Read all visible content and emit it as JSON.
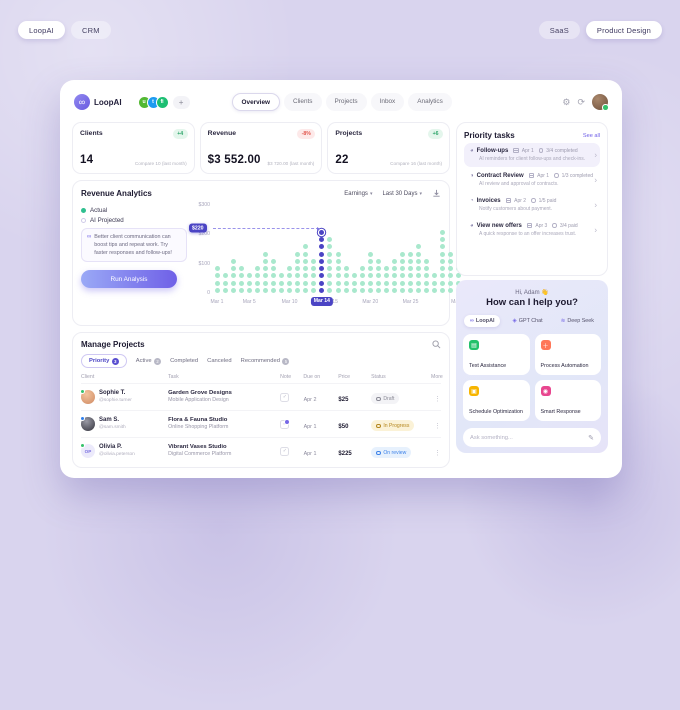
{
  "page_tags": {
    "left": [
      {
        "label": "LoopAI"
      },
      {
        "label": "CRM"
      }
    ],
    "right": [
      {
        "label": "SaaS"
      },
      {
        "label": "Product Design"
      }
    ]
  },
  "header": {
    "brand": "LoopAI",
    "logo_glyph": "∞",
    "integrations": [
      {
        "name": "upwork",
        "glyph": "u",
        "color": "#53b833"
      },
      {
        "name": "twitter",
        "glyph": "t",
        "color": "#1d9bf0"
      },
      {
        "name": "fiverr",
        "glyph": "fi",
        "color": "#1dbf73"
      }
    ],
    "add_button": "+",
    "nav": [
      {
        "label": "Overview",
        "active": true
      },
      {
        "label": "Clients"
      },
      {
        "label": "Projects"
      },
      {
        "label": "Inbox"
      },
      {
        "label": "Analytics"
      }
    ]
  },
  "stats": [
    {
      "title": "Clients",
      "badge": "+4",
      "value": "14",
      "compare": "Compare 10 (last month)"
    },
    {
      "title": "Revenue",
      "badge": "-8%",
      "value": "$3 552.00",
      "compare": "$3 720.00 (last month)"
    },
    {
      "title": "Projects",
      "badge": "+6",
      "value": "22",
      "compare": "Compare 16 (last month)"
    }
  ],
  "priority_tasks": {
    "title": "Priority tasks",
    "see_all": "See all",
    "items": [
      {
        "icon": "◕",
        "title": "Follow-ups",
        "date": "Apr 1",
        "progress": "3/4 completed",
        "desc": "AI reminders for client follow-ups and check-ins."
      },
      {
        "icon": "◑",
        "title": "Contract Review",
        "date": "Apr 1",
        "progress": "1/3 completed",
        "desc": "AI review and approval of contracts."
      },
      {
        "icon": "◔",
        "title": "Invoices",
        "date": "Apr 2",
        "progress": "1/5 paid",
        "desc": "Notify customers about payment."
      },
      {
        "icon": "◕",
        "title": "View new offers",
        "date": "Apr 3",
        "progress": "3/4 paid",
        "desc": "A quick response to an offer increases trust."
      }
    ]
  },
  "revenue_analytics": {
    "title": "Revenue Analytics",
    "filters": [
      {
        "label": "Earnings"
      },
      {
        "label": "Last 30 Days"
      }
    ],
    "legend": [
      {
        "label": "Actual"
      },
      {
        "label": "AI Projected"
      }
    ],
    "ai_note": "Better client communication can boost tips and repeat work. Try faster responses and follow-ups!",
    "run_button": "Run Analysis"
  },
  "chart_data": {
    "type": "bar",
    "subtype": "dot-column",
    "title": "Revenue Analytics — daily revenue, March",
    "x_range": "Mar 1 – Mar 31",
    "series": [
      {
        "name": "Actual",
        "values": [
          100,
          75,
          120,
          100,
          75,
          100,
          145,
          120,
          75,
          100,
          145,
          170,
          120,
          220,
          195,
          145,
          100,
          75,
          100,
          145,
          120,
          100,
          120,
          145,
          145,
          170,
          120,
          75,
          220,
          145,
          120
        ]
      }
    ],
    "dot_counts": [
      4,
      3,
      5,
      4,
      3,
      4,
      6,
      5,
      3,
      4,
      6,
      7,
      5,
      9,
      8,
      6,
      4,
      3,
      4,
      6,
      5,
      4,
      5,
      6,
      6,
      7,
      5,
      3,
      9,
      6,
      5
    ],
    "highlight_index": 13,
    "highlight_label": "$220",
    "highlight_x_label": "Mar 14",
    "y_ticks": [
      "$300",
      "$200",
      "$100",
      "0"
    ],
    "x_ticks": [
      {
        "label": "Mar 1",
        "pos": 1.6
      },
      {
        "label": "Mar 5",
        "pos": 14.5
      },
      {
        "label": "Mar 10",
        "pos": 30.6
      },
      {
        "label": "Mar 15",
        "pos": 46.8
      },
      {
        "label": "Mar 20",
        "pos": 62.9
      },
      {
        "label": "Mar 25",
        "pos": 79.0
      },
      {
        "label": "Mar 31",
        "pos": 98.4
      }
    ],
    "ylim": [
      0,
      300
    ],
    "legend_position": "left",
    "grid": false
  },
  "manage_projects": {
    "title": "Manage Projects",
    "tabs": [
      {
        "label": "Priority",
        "badge": "3",
        "active": true
      },
      {
        "label": "Active",
        "badge": "2"
      },
      {
        "label": "Completed"
      },
      {
        "label": "Canceled"
      },
      {
        "label": "Recommended",
        "badge": "5"
      }
    ],
    "columns": [
      "Client",
      "Task",
      "Note",
      "Due on",
      "Price",
      "Status",
      "More"
    ],
    "rows": [
      {
        "client": "Sophie T.",
        "handle": "@sophie.turner",
        "company": "Garden Grove Designs",
        "detail": "Mobile Application Design",
        "due": "Apr 2",
        "price": "$25",
        "status": "Draft",
        "avatar_label": ""
      },
      {
        "client": "Sam S.",
        "handle": "@sam.smith",
        "company": "Flora & Fauna Studio",
        "detail": "Online Shopping Platform",
        "due": "Apr 1",
        "price": "$50",
        "status": "In Progress",
        "avatar_label": ""
      },
      {
        "client": "Olivia P.",
        "handle": "@olivia.peterson",
        "company": "Vibrant Vases Studio",
        "detail": "Digital Commerce Platform",
        "due": "Apr 1",
        "price": "$225",
        "status": "On review",
        "avatar_label": "OP"
      }
    ]
  },
  "assistant": {
    "greeting": "Hi, Adam",
    "wave": "👋",
    "title": "How can I help you?",
    "tabs": [
      {
        "label": "LoopAI",
        "active": true
      },
      {
        "label": "GPT Chat"
      },
      {
        "label": "Deep Seek"
      }
    ],
    "cards": [
      {
        "label": "Text Assistance",
        "color": "#23c16b"
      },
      {
        "label": "Process Automation",
        "color": "#ff7759"
      },
      {
        "label": "Schedule Optimization",
        "color": "#f7b500"
      },
      {
        "label": "Smart Response",
        "color": "#e8468f"
      }
    ],
    "input_placeholder": "Ask something..."
  },
  "colors": {
    "accent": "#6c5ce7",
    "chart_dot": "#a9e8cd",
    "chart_highlight": "#4b44c4",
    "up": "#2da56a",
    "down": "#e2574e"
  }
}
